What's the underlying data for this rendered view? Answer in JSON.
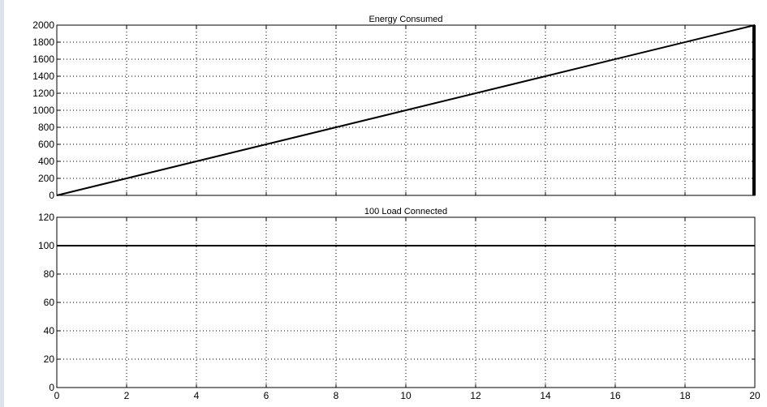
{
  "chart_data": [
    {
      "type": "line",
      "title": "Energy Consumed",
      "xlabel": "",
      "ylabel": "",
      "xlim": [
        0,
        20
      ],
      "ylim": [
        0,
        2000
      ],
      "x_ticks": [],
      "x_tick_labels": [],
      "y_ticks": [
        0,
        200,
        400,
        600,
        800,
        1000,
        1200,
        1400,
        1600,
        1800,
        2000
      ],
      "y_tick_labels": [
        "0",
        "200",
        "400",
        "600",
        "800",
        "1000",
        "1200",
        "1400",
        "1600",
        "1800",
        "2000"
      ],
      "grid": true,
      "series": [
        {
          "x": [
            0,
            20
          ],
          "y": [
            0,
            2000
          ],
          "color": "#000000"
        }
      ],
      "vertical_markers": [
        {
          "x": 20,
          "y_from": 0,
          "y_to": 2000,
          "color": "#000000"
        }
      ]
    },
    {
      "type": "line",
      "title": "100 Load Connected",
      "xlabel": "",
      "ylabel": "",
      "xlim": [
        0,
        20
      ],
      "ylim": [
        0,
        120
      ],
      "x_ticks": [
        0,
        2,
        4,
        6,
        8,
        10,
        12,
        14,
        16,
        18,
        20
      ],
      "x_tick_labels": [
        "0",
        "2",
        "4",
        "6",
        "8",
        "10",
        "12",
        "14",
        "16",
        "18",
        "20"
      ],
      "y_ticks": [
        0,
        20,
        40,
        60,
        80,
        100,
        120
      ],
      "y_tick_labels": [
        "0",
        "20",
        "40",
        "60",
        "80",
        "100",
        "120"
      ],
      "grid": true,
      "series": [
        {
          "x": [
            0,
            20
          ],
          "y": [
            100,
            100
          ],
          "color": "#000000"
        }
      ]
    }
  ]
}
